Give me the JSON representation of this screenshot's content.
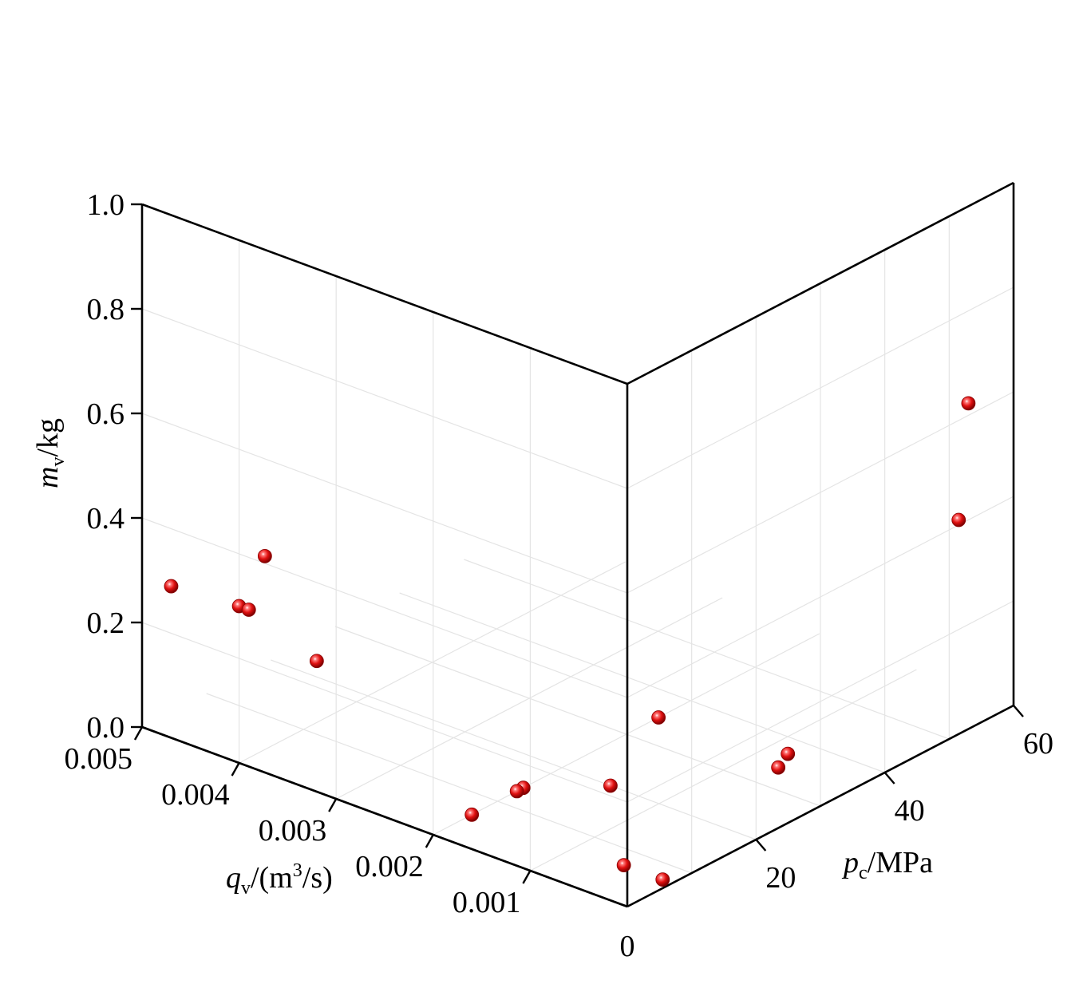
{
  "chart_data": {
    "type": "scatter",
    "projection": "3d",
    "title": "",
    "axes": {
      "x": {
        "label_main": "q",
        "label_sub": "v",
        "label_unit": "/(m",
        "label_sup": "3",
        "label_end": "/s)",
        "range": [
          0,
          0.005
        ],
        "ticks": [
          0.001,
          0.002,
          0.003,
          0.004,
          0.005
        ],
        "tick_labels": [
          "0.001",
          "0.002",
          "0.003",
          "0.004",
          "0.005"
        ]
      },
      "y": {
        "label_main": "p",
        "label_sub": "c",
        "label_unit": "/MPa",
        "range": [
          0,
          60
        ],
        "ticks": [
          0,
          20,
          40,
          60
        ],
        "tick_labels": [
          "0",
          "20",
          "40",
          "60"
        ]
      },
      "z": {
        "label_main": "m",
        "label_sub": "v",
        "label_unit": "/kg",
        "range": [
          0,
          1.0
        ],
        "ticks": [
          0.0,
          0.2,
          0.4,
          0.6,
          0.8,
          1.0
        ],
        "tick_labels": [
          "0.0",
          "0.2",
          "0.4",
          "0.6",
          "0.8",
          "1.0"
        ]
      }
    },
    "grid": true,
    "marker_color": "#d91010",
    "points": [
      {
        "x": 0.0047,
        "y": 0,
        "z": 0.29
      },
      {
        "x": 0.004,
        "y": 0,
        "z": 0.3
      },
      {
        "x": 0.0039,
        "y": 0,
        "z": 0.3
      },
      {
        "x": 0.004,
        "y": 4,
        "z": 0.37
      },
      {
        "x": 0.0032,
        "y": 0,
        "z": 0.25
      },
      {
        "x": 0.0002,
        "y": 56,
        "z": 0.59
      },
      {
        "x": 0.0003,
        "y": 56,
        "z": 0.36
      },
      {
        "x": 0.002,
        "y": 35,
        "z": 0.0
      },
      {
        "x": 0.0008,
        "y": 37,
        "z": 0.0
      },
      {
        "x": 0.0007,
        "y": 34,
        "z": 0.0
      },
      {
        "x": 0.0015,
        "y": 20,
        "z": 0.0
      },
      {
        "x": 0.002,
        "y": 14,
        "z": 0.0
      },
      {
        "x": 0.002,
        "y": 13,
        "z": 0.0
      },
      {
        "x": 0.002,
        "y": 6,
        "z": 0.0
      },
      {
        "x": 0.0005,
        "y": 7,
        "z": 0.0
      },
      {
        "x": 0.0001,
        "y": 7,
        "z": 0.0
      }
    ]
  }
}
